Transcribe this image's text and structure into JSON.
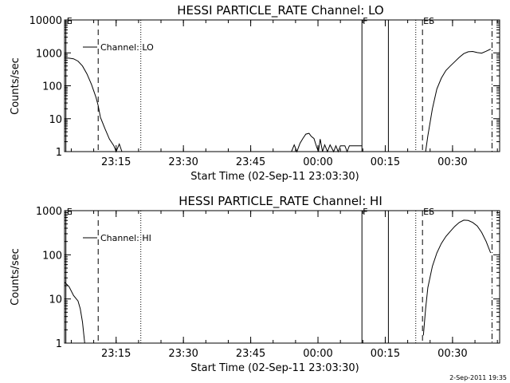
{
  "footer": {
    "timestamp": "2-Sep-2011 19:35"
  },
  "chart_data": [
    {
      "type": "line",
      "title": "HESSI PARTICLE_RATE Channel: LO",
      "xlabel": "Start Time (02-Sep-11 23:03:30)",
      "ylabel": "Counts/sec",
      "y_scale": "log",
      "ylim": [
        1,
        10000
      ],
      "xlim_minutes": [
        0,
        97
      ],
      "y_ticks": [
        {
          "value": 1,
          "label": "1"
        },
        {
          "value": 10,
          "label": "10"
        },
        {
          "value": 100,
          "label": "100"
        },
        {
          "value": 1000,
          "label": "1000"
        },
        {
          "value": 10000,
          "label": "10000"
        }
      ],
      "x_ticks": [
        {
          "minute": 11.5,
          "label": "23:15"
        },
        {
          "minute": 26.5,
          "label": "23:30"
        },
        {
          "minute": 41.5,
          "label": "23:45"
        },
        {
          "minute": 56.5,
          "label": "00:00"
        },
        {
          "minute": 71.5,
          "label": "00:15"
        },
        {
          "minute": 86.5,
          "label": "00:30"
        }
      ],
      "legend": {
        "position": "top-left",
        "entry": "Channel: LO"
      },
      "events": [
        {
          "minute": 0.3,
          "style": "solid",
          "label": "E"
        },
        {
          "minute": 7.5,
          "style": "dashed",
          "label": ""
        },
        {
          "minute": 17.0,
          "style": "dotted",
          "label": ""
        },
        {
          "minute": 66.3,
          "style": "solid",
          "label": "F"
        },
        {
          "minute": 72.2,
          "style": "solid",
          "label": ""
        },
        {
          "minute": 78.3,
          "style": "dotted",
          "label": ""
        },
        {
          "minute": 79.8,
          "style": "dashed",
          "label": "ES"
        },
        {
          "minute": 95.3,
          "style": "dashdot",
          "label": ""
        }
      ],
      "series": [
        {
          "segments": [
            [
              [
                0,
                700
              ],
              [
                1,
                690
              ],
              [
                2,
                660
              ],
              [
                3,
                560
              ],
              [
                4,
                400
              ],
              [
                5,
                230
              ],
              [
                6,
                110
              ],
              [
                7,
                45
              ],
              [
                7.5,
                25
              ],
              [
                8,
                11
              ],
              [
                9,
                5
              ],
              [
                10,
                2.4
              ],
              [
                11,
                1.5
              ],
              [
                11.5,
                1
              ],
              [
                12.2,
                1.7
              ],
              [
                12.8,
                1
              ]
            ],
            [
              [
                50.6,
                1
              ],
              [
                51.2,
                1.6
              ],
              [
                51.8,
                1
              ],
              [
                52.5,
                1.8
              ],
              [
                53.2,
                2.6
              ],
              [
                53.8,
                3.4
              ],
              [
                54.5,
                3.6
              ],
              [
                55.0,
                2.9
              ],
              [
                55.6,
                2.5
              ],
              [
                56.2,
                1.4
              ],
              [
                56.6,
                1
              ],
              [
                57.0,
                2.4
              ],
              [
                57.5,
                1
              ],
              [
                58.0,
                1.6
              ],
              [
                58.6,
                1
              ],
              [
                59.2,
                1.6
              ],
              [
                60.0,
                1
              ],
              [
                60.5,
                1.5
              ],
              [
                61.0,
                1
              ],
              [
                61.5,
                1.5
              ],
              [
                62.5,
                1.5
              ],
              [
                63.0,
                1
              ],
              [
                63.5,
                1.5
              ],
              [
                65.5,
                1.5
              ],
              [
                66.3,
                1.5
              ]
            ],
            [
              [
                80.5,
                1
              ],
              [
                81,
                3
              ],
              [
                82,
                20
              ],
              [
                83,
                80
              ],
              [
                84,
                170
              ],
              [
                85,
                290
              ],
              [
                86,
                400
              ],
              [
                87,
                540
              ],
              [
                88,
                730
              ],
              [
                89,
                950
              ],
              [
                90,
                1080
              ],
              [
                91,
                1100
              ],
              [
                92,
                1020
              ],
              [
                93,
                980
              ],
              [
                94,
                1120
              ],
              [
                95,
                1300
              ]
            ]
          ]
        }
      ]
    },
    {
      "type": "line",
      "title": "HESSI PARTICLE_RATE Channel: HI",
      "xlabel": "Start Time (02-Sep-11 23:03:30)",
      "ylabel": "Counts/sec",
      "y_scale": "log",
      "ylim": [
        1,
        1000
      ],
      "xlim_minutes": [
        0,
        97
      ],
      "y_ticks": [
        {
          "value": 1,
          "label": "1"
        },
        {
          "value": 10,
          "label": "10"
        },
        {
          "value": 100,
          "label": "100"
        },
        {
          "value": 1000,
          "label": "1000"
        }
      ],
      "x_ticks": [
        {
          "minute": 11.5,
          "label": "23:15"
        },
        {
          "minute": 26.5,
          "label": "23:30"
        },
        {
          "minute": 41.5,
          "label": "23:45"
        },
        {
          "minute": 56.5,
          "label": "00:00"
        },
        {
          "minute": 71.5,
          "label": "00:15"
        },
        {
          "minute": 86.5,
          "label": "00:30"
        }
      ],
      "legend": {
        "position": "top-left",
        "entry": "Channel: HI"
      },
      "events": [
        {
          "minute": 0.3,
          "style": "solid",
          "label": "E"
        },
        {
          "minute": 7.5,
          "style": "dashed",
          "label": ""
        },
        {
          "minute": 17.0,
          "style": "dotted",
          "label": ""
        },
        {
          "minute": 66.3,
          "style": "solid",
          "label": "F"
        },
        {
          "minute": 72.2,
          "style": "solid",
          "label": ""
        },
        {
          "minute": 78.3,
          "style": "dotted",
          "label": ""
        },
        {
          "minute": 79.8,
          "style": "dashed",
          "label": "ES"
        },
        {
          "minute": 95.3,
          "style": "dashdot",
          "label": ""
        }
      ],
      "series": [
        {
          "segments": [
            [
              [
                0,
                24
              ],
              [
                1,
                19
              ],
              [
                2,
                12
              ],
              [
                3,
                9
              ],
              [
                3.5,
                6
              ],
              [
                4,
                3
              ],
              [
                4.5,
                1
              ]
            ],
            [
              [
                80.0,
                1.5
              ],
              [
                80.5,
                6
              ],
              [
                81,
                18
              ],
              [
                82,
                55
              ],
              [
                83,
                110
              ],
              [
                84,
                180
              ],
              [
                85,
                260
              ],
              [
                86,
                340
              ],
              [
                87,
                440
              ],
              [
                88,
                540
              ],
              [
                89,
                610
              ],
              [
                90,
                600
              ],
              [
                91,
                540
              ],
              [
                92,
                450
              ],
              [
                93,
                320
              ],
              [
                94,
                200
              ],
              [
                95,
                110
              ]
            ]
          ]
        }
      ]
    }
  ]
}
